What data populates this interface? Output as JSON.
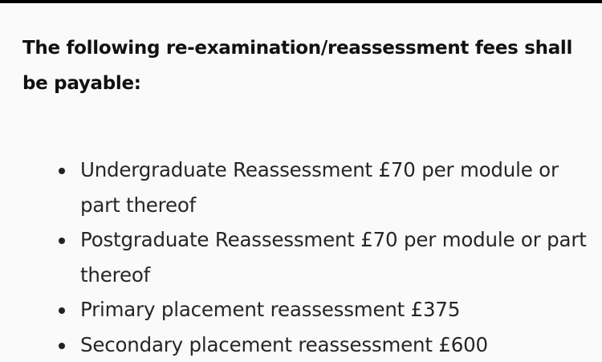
{
  "heading": "The following re-examination/reassessment fees shall be payable:",
  "items": [
    "Undergraduate Reassessment £70 per module or part thereof",
    "Postgraduate Reassessment £70 per module or part thereof",
    "Primary placement reassessment £375",
    "Secondary placement reassessment £600"
  ]
}
